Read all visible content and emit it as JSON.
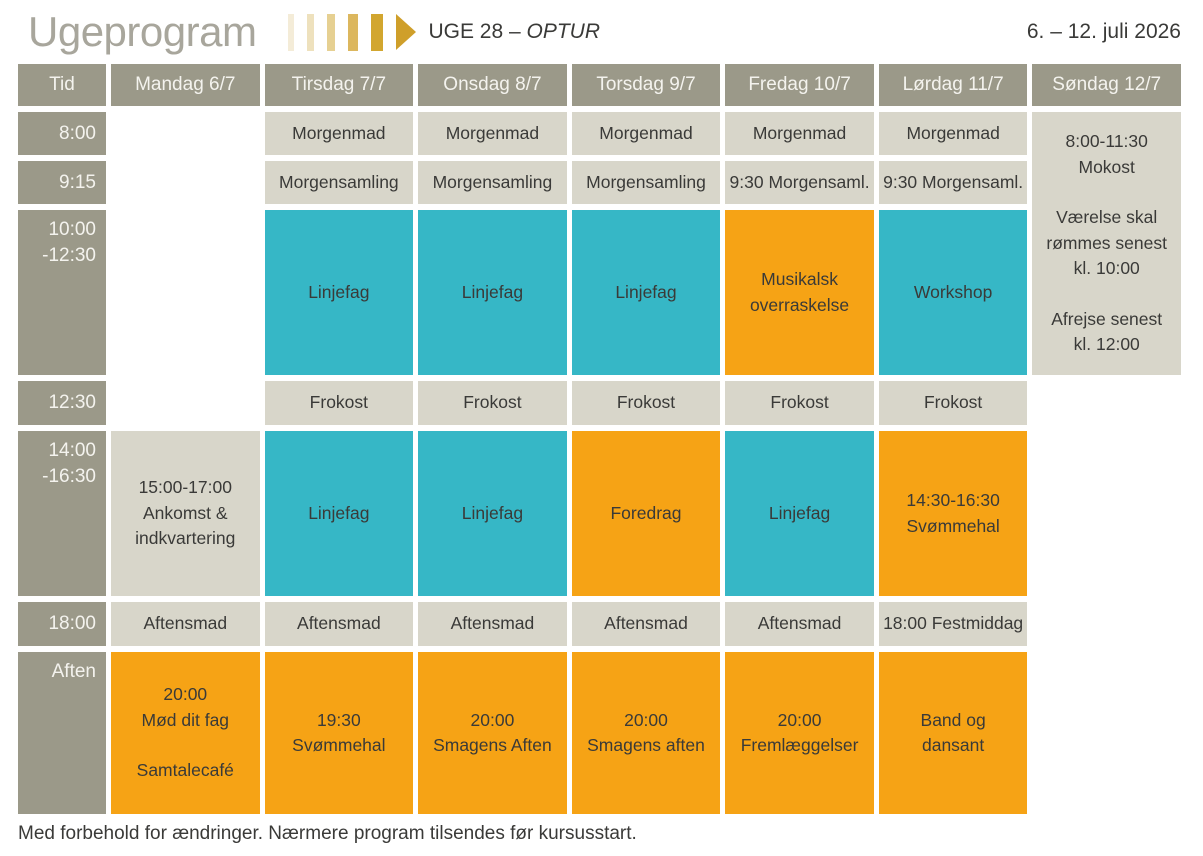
{
  "page": {
    "title": "Ugeprogram",
    "week_label": "UGE 28 – ",
    "week_name": "OPTUR",
    "date_range": "6. – 12. juli 2026",
    "footer": "Med forbehold for ændringer. Nærmere program tilsendes før kursusstart."
  },
  "logo": {
    "bar_colors": [
      "#f4ecd8",
      "#eee1bd",
      "#e6d092",
      "#dcb75e",
      "#d2a62f"
    ],
    "arrow_color": "#cf9f2a"
  },
  "colors": {
    "head_bg": "#9b9989",
    "head_text": "#f4f3ee",
    "light": "#d8d6ca",
    "teal": "#36b7c6",
    "orange": "#f6a315",
    "cell_text": "#3a3a38",
    "title_color": "#a8a69c"
  },
  "table": {
    "columns": [
      "Tid",
      "Mandag 6/7",
      "Tirsdag 7/7",
      "Onsdag 8/7",
      "Torsdag 9/7",
      "Fredag 10/7",
      "Lørdag 11/7",
      "Søndag 12/7"
    ],
    "rows": [
      {
        "time_lines": [
          "8:00"
        ],
        "tall": false,
        "cells": [
          {
            "type": "empty"
          },
          {
            "type": "light",
            "lines": [
              "Morgenmad"
            ]
          },
          {
            "type": "light",
            "lines": [
              "Morgenmad"
            ]
          },
          {
            "type": "light",
            "lines": [
              "Morgenmad"
            ]
          },
          {
            "type": "light",
            "lines": [
              "Morgenmad"
            ]
          },
          {
            "type": "light",
            "lines": [
              "Morgenmad"
            ]
          },
          {
            "type": "light",
            "rowspan": 3,
            "lines": [
              "8:00-11:30",
              "Mokost",
              "",
              "Værelse skal",
              "rømmes senest",
              "kl. 10:00",
              "",
              "Afrejse senest",
              "kl. 12:00"
            ]
          }
        ]
      },
      {
        "time_lines": [
          "9:15"
        ],
        "tall": false,
        "cells": [
          {
            "type": "empty"
          },
          {
            "type": "light",
            "lines": [
              "Morgensamling"
            ]
          },
          {
            "type": "light",
            "lines": [
              "Morgensamling"
            ]
          },
          {
            "type": "light",
            "lines": [
              "Morgensamling"
            ]
          },
          {
            "type": "light",
            "lines": [
              "9:30 Morgensaml."
            ]
          },
          {
            "type": "light",
            "lines": [
              "9:30 Morgensaml."
            ]
          },
          {
            "type": "skip"
          }
        ]
      },
      {
        "time_lines": [
          "10:00",
          "-12:30"
        ],
        "tall": true,
        "cells": [
          {
            "type": "empty"
          },
          {
            "type": "teal",
            "lines": [
              "Linjefag"
            ]
          },
          {
            "type": "teal",
            "lines": [
              "Linjefag"
            ]
          },
          {
            "type": "teal",
            "lines": [
              "Linjefag"
            ]
          },
          {
            "type": "orange",
            "lines": [
              "Musikalsk",
              "overraskelse"
            ]
          },
          {
            "type": "teal",
            "lines": [
              "Workshop"
            ]
          },
          {
            "type": "skip"
          }
        ]
      },
      {
        "time_lines": [
          "12:30"
        ],
        "tall": false,
        "cells": [
          {
            "type": "empty"
          },
          {
            "type": "light",
            "lines": [
              "Frokost"
            ]
          },
          {
            "type": "light",
            "lines": [
              "Frokost"
            ]
          },
          {
            "type": "light",
            "lines": [
              "Frokost"
            ]
          },
          {
            "type": "light",
            "lines": [
              "Frokost"
            ]
          },
          {
            "type": "light",
            "lines": [
              "Frokost"
            ]
          },
          {
            "type": "empty"
          }
        ]
      },
      {
        "time_lines": [
          "14:00",
          "-16:30"
        ],
        "tall": true,
        "cells": [
          {
            "type": "light",
            "lines": [
              "15:00-17:00",
              "Ankomst &",
              "indkvartering"
            ]
          },
          {
            "type": "teal",
            "lines": [
              "Linjefag"
            ]
          },
          {
            "type": "teal",
            "lines": [
              "Linjefag"
            ]
          },
          {
            "type": "orange",
            "lines": [
              "Foredrag"
            ]
          },
          {
            "type": "teal",
            "lines": [
              "Linjefag"
            ]
          },
          {
            "type": "orange",
            "lines": [
              "14:30-16:30",
              "Svømmehal"
            ]
          },
          {
            "type": "empty"
          }
        ]
      },
      {
        "time_lines": [
          "18:00"
        ],
        "tall": false,
        "cells": [
          {
            "type": "light",
            "lines": [
              "Aftensmad"
            ]
          },
          {
            "type": "light",
            "lines": [
              "Aftensmad"
            ]
          },
          {
            "type": "light",
            "lines": [
              "Aftensmad"
            ]
          },
          {
            "type": "light",
            "lines": [
              "Aftensmad"
            ]
          },
          {
            "type": "light",
            "lines": [
              "Aftensmad"
            ]
          },
          {
            "type": "light",
            "lines": [
              "18:00 Festmiddag"
            ]
          },
          {
            "type": "empty"
          }
        ]
      },
      {
        "time_lines": [
          "Aften"
        ],
        "tall": true,
        "cells": [
          {
            "type": "orange",
            "lines": [
              "20:00",
              "Mød dit fag",
              "",
              "Samtalecafé"
            ]
          },
          {
            "type": "orange",
            "lines": [
              "19:30",
              "Svømmehal"
            ]
          },
          {
            "type": "orange",
            "lines": [
              "20:00",
              "Smagens Aften"
            ]
          },
          {
            "type": "orange",
            "lines": [
              "20:00",
              "Smagens aften"
            ]
          },
          {
            "type": "orange",
            "lines": [
              "20:00",
              "Fremlæggelser"
            ]
          },
          {
            "type": "orange",
            "lines": [
              "Band og",
              "dansant"
            ]
          },
          {
            "type": "empty"
          }
        ]
      }
    ]
  }
}
